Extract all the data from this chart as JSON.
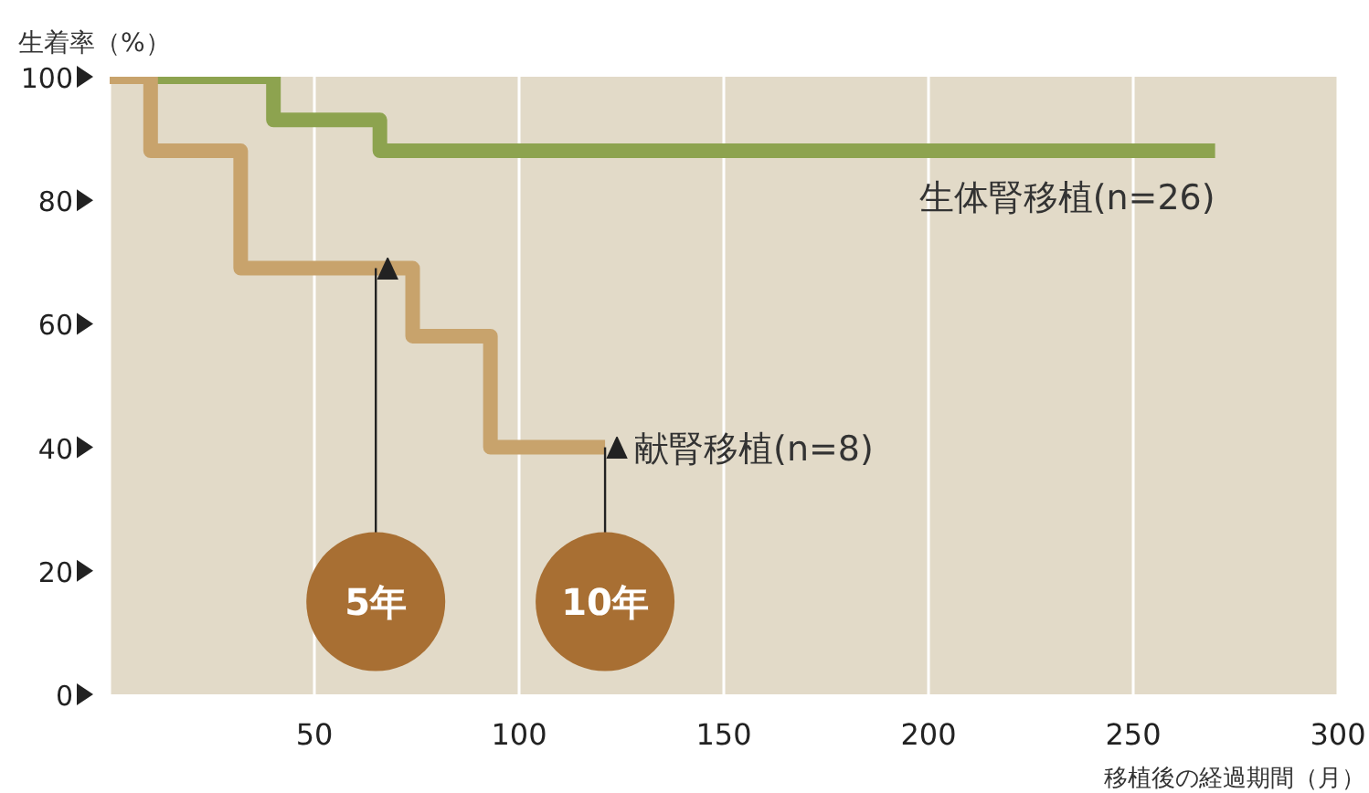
{
  "chart_data": {
    "type": "step",
    "ylabel": "生着率（%）",
    "xlabel": "移植後の経過期間（月）",
    "series": [
      {
        "name": "生体腎移植(n=26)",
        "color": "#8da34f",
        "x": [
          0,
          40,
          66,
          270
        ],
        "values": [
          100,
          93,
          88,
          88
        ]
      },
      {
        "name": "献腎移植(n=8)",
        "color": "#c8a36c",
        "x": [
          0,
          10,
          32,
          74,
          93,
          121
        ],
        "values": [
          100,
          88,
          69,
          58,
          40,
          40
        ]
      }
    ],
    "xlim": [
      0,
      300
    ],
    "xticks": [
      50,
      100,
      150,
      200,
      250,
      300
    ],
    "ylim": [
      0,
      100
    ],
    "yticks": [
      0,
      20,
      40,
      60,
      80,
      100
    ],
    "grid": "x",
    "legend": false,
    "annotations": [
      {
        "text": "5年",
        "x": 65,
        "y": 69
      },
      {
        "text": "10年",
        "x": 121,
        "y": 40
      }
    ]
  }
}
